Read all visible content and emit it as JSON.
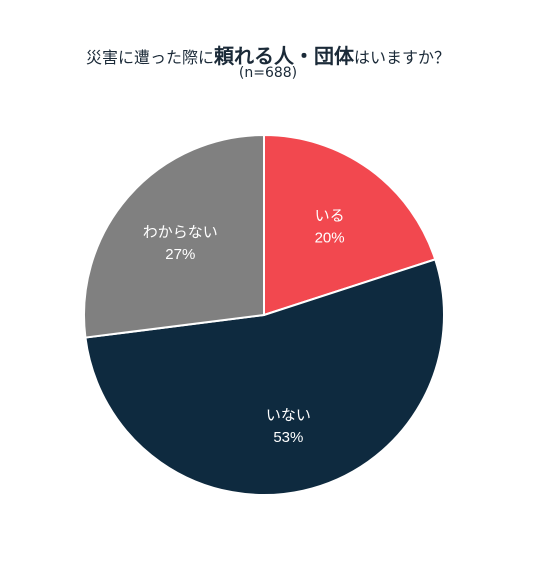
{
  "chart_data": {
    "type": "pie",
    "title": {
      "part1": "災害に遭った際に",
      "part2": "頼れる人・団体",
      "part3": "はいますか？"
    },
    "subtitle": "(n=688)",
    "slices": [
      {
        "label": "いる",
        "value": 20,
        "value_label": "20%",
        "color": "#f2484f"
      },
      {
        "label": "いない",
        "value": 53,
        "value_label": "53%",
        "color": "#0e2a3f"
      },
      {
        "label": "わからない",
        "value": 27,
        "value_label": "27%",
        "color": "#808080"
      }
    ],
    "start_direction": "12 o'clock",
    "direction": "clockwise"
  }
}
